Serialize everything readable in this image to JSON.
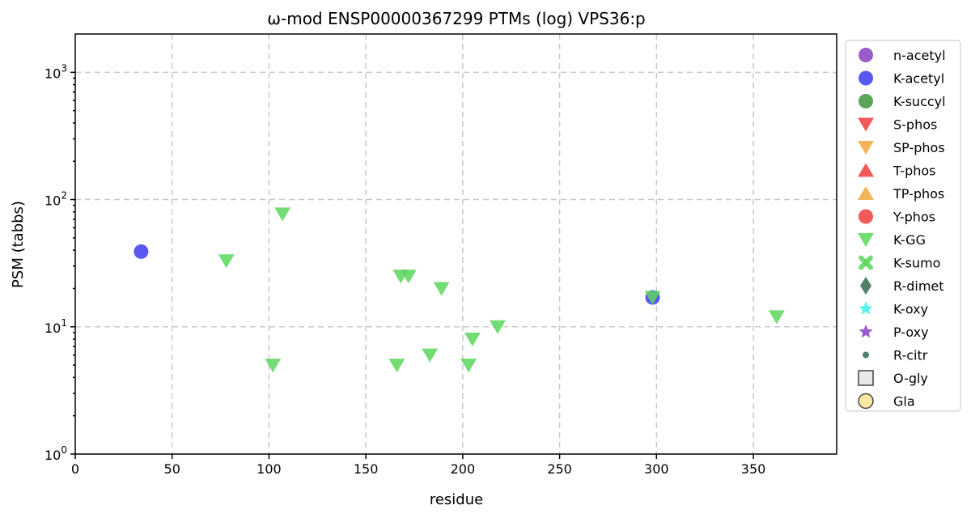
{
  "chart_data": {
    "type": "scatter",
    "title": "ω-mod ENSP00000367299 PTMs (log) VPS36:p",
    "xlabel": "residue",
    "ylabel": "PSM (tabbs)",
    "xlim": [
      0,
      393
    ],
    "ylim": [
      1,
      2000
    ],
    "yscale": "log",
    "grid": true,
    "legend_position": "outside-right",
    "x_ticks": [
      0,
      50,
      100,
      150,
      200,
      250,
      300,
      350
    ],
    "x_tick_labels": [
      "0",
      "50",
      "100",
      "150",
      "200",
      "250",
      "300",
      "350"
    ],
    "y_ticks": [
      1,
      10,
      100,
      1000
    ],
    "y_tick_labels": [
      {
        "base": "10",
        "exp": "0"
      },
      {
        "base": "10",
        "exp": "1"
      },
      {
        "base": "10",
        "exp": "2"
      },
      {
        "base": "10",
        "exp": "3"
      }
    ],
    "series": [
      {
        "name": "n-acetyl",
        "marker": "circle",
        "color": "#8a3fbf",
        "points": []
      },
      {
        "name": "K-acetyl",
        "marker": "circle",
        "color": "#3c3cf0",
        "points": [
          [
            34,
            39
          ],
          [
            298,
            17
          ]
        ]
      },
      {
        "name": "K-succyl",
        "marker": "circle",
        "color": "#3c963c",
        "points": []
      },
      {
        "name": "S-phos",
        "marker": "triangle-down",
        "color": "#f03c3c",
        "points": []
      },
      {
        "name": "SP-phos",
        "marker": "triangle-down",
        "color": "#f0a83c",
        "points": []
      },
      {
        "name": "T-phos",
        "marker": "triangle-up",
        "color": "#f03c3c",
        "points": []
      },
      {
        "name": "TP-phos",
        "marker": "triangle-up",
        "color": "#f0a83c",
        "points": []
      },
      {
        "name": "Y-phos",
        "marker": "circle",
        "color": "#f03c3c",
        "points": []
      },
      {
        "name": "K-GG",
        "marker": "triangle-down",
        "color": "#5cd65c",
        "points": [
          [
            78,
            33
          ],
          [
            102,
            5
          ],
          [
            107,
            77
          ],
          [
            166,
            5
          ],
          [
            168,
            25
          ],
          [
            172,
            25
          ],
          [
            183,
            6
          ],
          [
            189,
            20
          ],
          [
            203,
            5
          ],
          [
            205,
            8
          ],
          [
            218,
            10
          ],
          [
            298,
            17
          ],
          [
            362,
            12
          ]
        ]
      },
      {
        "name": "K-sumo",
        "marker": "x",
        "color": "#5cd65c",
        "points": []
      },
      {
        "name": "R-dimet",
        "marker": "diamond",
        "color": "#2e6b4f",
        "points": []
      },
      {
        "name": "K-oxy",
        "marker": "star",
        "color": "#3cf0f0",
        "points": []
      },
      {
        "name": "P-oxy",
        "marker": "star",
        "color": "#8a3fbf",
        "points": []
      },
      {
        "name": "R-citr",
        "marker": "small-circle",
        "color": "#2e6b4f",
        "points": []
      },
      {
        "name": "O-gly",
        "marker": "square-open",
        "color": "#e8e8e8",
        "points": []
      },
      {
        "name": "Gla",
        "marker": "circle-open",
        "color": "#fbe8a0",
        "points": []
      }
    ]
  }
}
